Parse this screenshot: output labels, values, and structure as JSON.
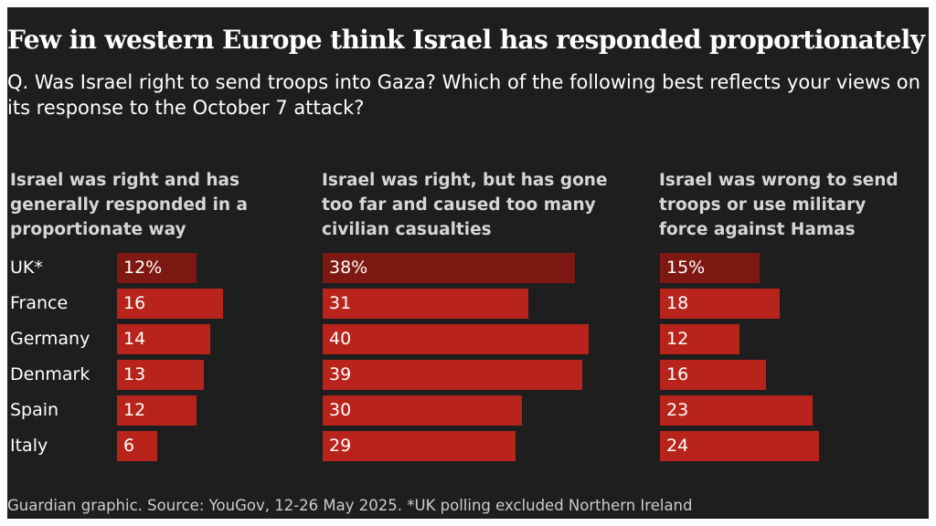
{
  "colors": {
    "background": "#1e1e1e",
    "bar_uk": "#7d1812",
    "bar": "#b8241b"
  },
  "chart_data": {
    "type": "bar",
    "orientation": "horizontal",
    "title": "Few in western Europe think Israel has responded proportionately",
    "subtitle": "Q. Was Israel right to send troops into Gaza? Which of the following best reflects your views on its response to the October 7 attack?",
    "categories": [
      "UK*",
      "France",
      "Germany",
      "Denmark",
      "Spain",
      "Italy"
    ],
    "value_labels": [
      [
        "12%",
        "16",
        "14",
        "13",
        "12",
        "6"
      ],
      [
        "38%",
        "31",
        "40",
        "39",
        "30",
        "29"
      ],
      [
        "15%",
        "18",
        "12",
        "16",
        "23",
        "24"
      ]
    ],
    "series": [
      {
        "name": "Israel was right and has generally responded in a proportionate way",
        "values": [
          12,
          16,
          14,
          13,
          12,
          6
        ]
      },
      {
        "name": "Israel was right, but has gone too far and caused too many civilian casualties",
        "values": [
          38,
          31,
          40,
          39,
          30,
          29
        ]
      },
      {
        "name": "Israel was wrong to send troops or use military force against Hamas",
        "values": [
          15,
          18,
          12,
          16,
          23,
          24
        ]
      }
    ],
    "source": "Guardian graphic. Source: YouGov, 12-26 May 2025. *UK polling excluded Northern Ireland"
  }
}
